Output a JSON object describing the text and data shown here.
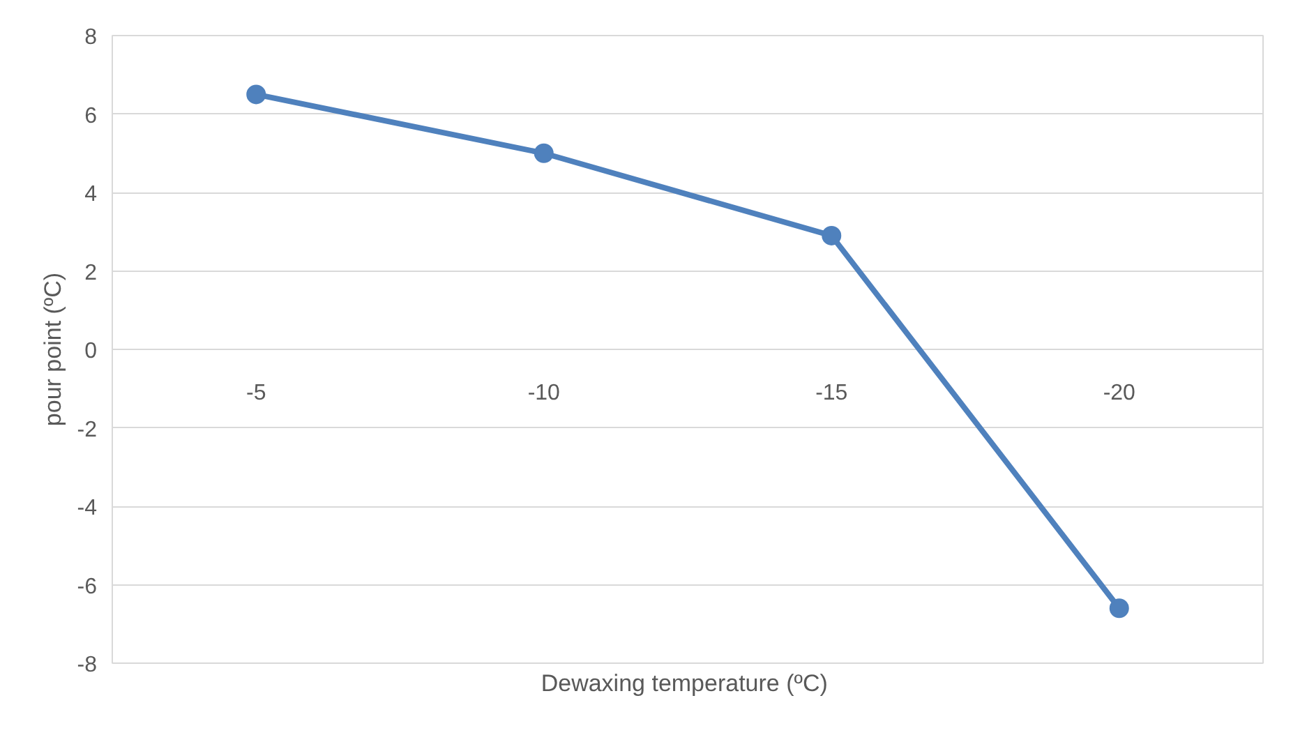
{
  "chart_data": {
    "type": "line",
    "xlabel": "Dewaxing temperature  (ºC)",
    "ylabel": "pour point (ºC)",
    "categories": [
      "-5",
      "-10",
      "-15",
      "-20"
    ],
    "series": [
      {
        "color": "#4f81bd",
        "values": [
          6.5,
          5.0,
          2.9,
          -6.6
        ]
      }
    ],
    "ylim": [
      -8,
      8
    ],
    "yticks": [
      -8,
      -6,
      -4,
      -2,
      0,
      2,
      4,
      6,
      8
    ],
    "grid": "y",
    "marker": "circle",
    "line_style": "solid"
  }
}
